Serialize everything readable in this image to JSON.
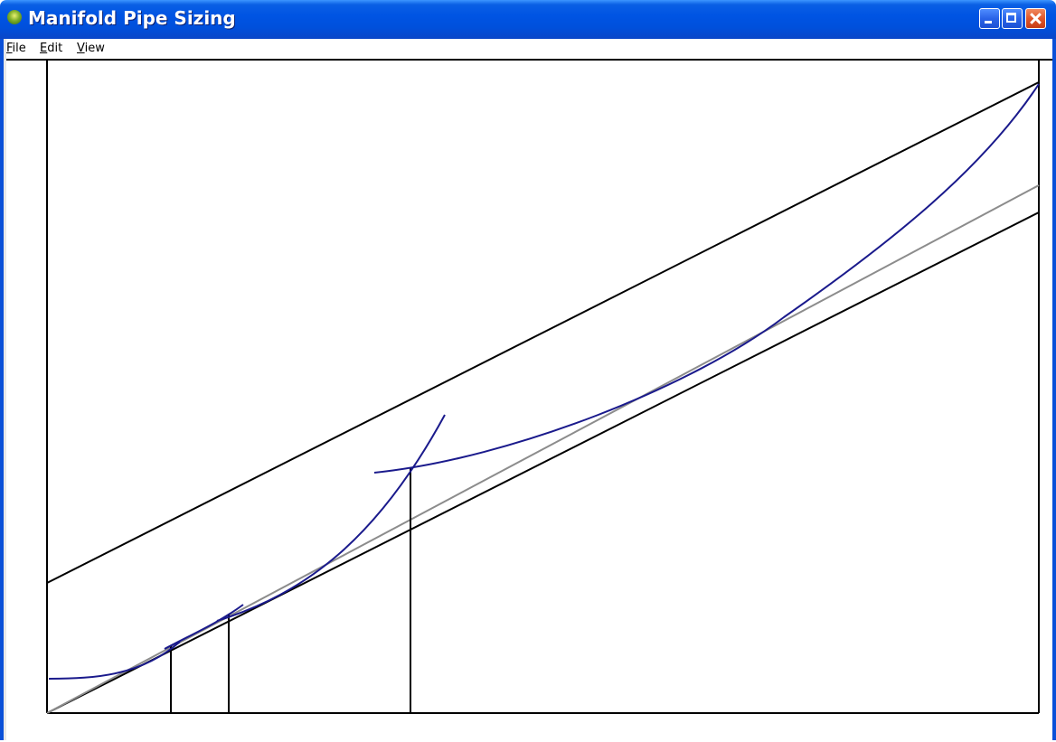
{
  "window": {
    "title": "Manifold Pipe Sizing",
    "title_icon": "manifold-app-icon",
    "controls": [
      "minimize",
      "maximize",
      "close"
    ]
  },
  "menu": {
    "items": [
      {
        "id": "file",
        "accelerator": "F",
        "rest": "ile"
      },
      {
        "id": "edit",
        "accelerator": "E",
        "rest": "dit"
      },
      {
        "id": "view",
        "accelerator": "V",
        "rest": "iew"
      }
    ]
  },
  "colors": {
    "titlebar": "#0054e3",
    "curve": "#1a1a8c",
    "reference_line": "#8c8c8c",
    "bound_line": "#000000"
  }
}
